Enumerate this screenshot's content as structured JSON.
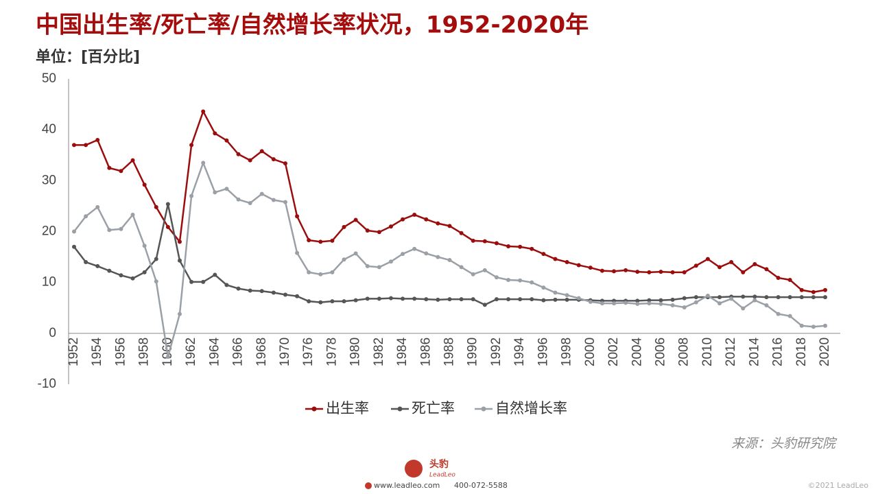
{
  "chart_data": {
    "type": "line",
    "title": "中国出生率/死亡率/自然增长率状况，1952-2020年",
    "subtitle": "单位：[百分比]",
    "source": "来源：头豹研究院",
    "categories": [
      "1952",
      null,
      "1954",
      null,
      "1956",
      null,
      "1958",
      null,
      "1960",
      null,
      "1962",
      null,
      "1964",
      null,
      "1966",
      null,
      "1968",
      null,
      "1970",
      null,
      "1976",
      null,
      "1978",
      null,
      "1980",
      null,
      "1982",
      null,
      "1984",
      null,
      "1986",
      null,
      "1988",
      null,
      "1990",
      null,
      "1992",
      null,
      "1994",
      null,
      "1996",
      null,
      "1998",
      null,
      "2000",
      null,
      "2002",
      null,
      "2004",
      null,
      "2006",
      null,
      "2008",
      null,
      "2010",
      null,
      "2012",
      null,
      "2014",
      null,
      "2016",
      null,
      "2018",
      null,
      "2020"
    ],
    "series": [
      {
        "name": "出生率",
        "color": "#9b0d0d",
        "values": [
          37,
          37,
          38,
          32.5,
          31.9,
          34.0,
          29.2,
          24.8,
          20.9,
          18.0,
          37.0,
          43.6,
          39.3,
          37.9,
          35.2,
          34.0,
          35.8,
          34.2,
          33.4,
          23.0,
          18.3,
          18.0,
          18.2,
          20.9,
          22.3,
          20.2,
          19.9,
          21.0,
          22.4,
          23.3,
          22.4,
          21.6,
          21.1,
          19.7,
          18.2,
          18.1,
          17.7,
          17.1,
          17.0,
          16.6,
          15.6,
          14.6,
          14.0,
          13.4,
          12.9,
          12.3,
          12.2,
          12.4,
          12.1,
          12.0,
          12.1,
          12.0,
          12.0,
          13.3,
          14.6,
          13.0,
          14.0,
          12.0,
          13.6,
          12.6,
          10.9,
          10.5,
          8.5,
          8.1,
          8.5
        ]
      },
      {
        "name": "死亡率",
        "color": "#555555",
        "values": [
          17,
          14,
          13.2,
          12.3,
          11.4,
          10.8,
          12.0,
          14.6,
          25.4,
          14.3,
          10.1,
          10.1,
          11.5,
          9.5,
          8.8,
          8.4,
          8.3,
          8.0,
          7.6,
          7.3,
          6.3,
          6.1,
          6.3,
          6.3,
          6.5,
          6.8,
          6.8,
          6.9,
          6.8,
          6.8,
          6.7,
          6.6,
          6.7,
          6.7,
          6.7,
          5.6,
          6.7,
          6.7,
          6.7,
          6.7,
          6.5,
          6.6,
          6.6,
          6.6,
          6.5,
          6.4,
          6.4,
          6.4,
          6.4,
          6.5,
          6.5,
          6.6,
          6.9,
          7.1,
          7.1,
          7.1,
          7.2,
          7.2,
          7.2,
          7.1,
          7.1,
          7.1,
          7.1,
          7.1,
          7.1
        ]
      },
      {
        "name": "自然增长率",
        "color": "#9aa0a6",
        "values": [
          20,
          23,
          24.8,
          20.3,
          20.5,
          23.3,
          17.2,
          10.2,
          -4.6,
          3.8,
          27.0,
          33.5,
          27.7,
          28.4,
          26.3,
          25.6,
          27.4,
          26.2,
          25.8,
          15.8,
          12.0,
          11.6,
          12.0,
          14.5,
          15.7,
          13.2,
          13.0,
          14.1,
          15.6,
          16.6,
          15.7,
          15.0,
          14.4,
          13.0,
          11.6,
          12.4,
          11.0,
          10.5,
          10.4,
          10.0,
          9.0,
          8.0,
          7.5,
          6.9,
          6.2,
          5.9,
          5.9,
          6.0,
          5.8,
          5.9,
          5.8,
          5.5,
          5.1,
          6.1,
          7.4,
          5.9,
          6.8,
          4.9,
          6.5,
          5.5,
          3.8,
          3.4,
          1.5,
          1.3,
          1.5
        ]
      }
    ],
    "ylim": [
      -10,
      50
    ],
    "yticks": [
      -10,
      0,
      10,
      20,
      30,
      40,
      50
    ],
    "grid": false,
    "legend": "bottom"
  },
  "footer": {
    "logo": "头豹",
    "brand": "LeadLeo",
    "website": "www.leadleo.com",
    "phone": "400-072-5588",
    "copyright": "©2021 LeadLeo"
  }
}
